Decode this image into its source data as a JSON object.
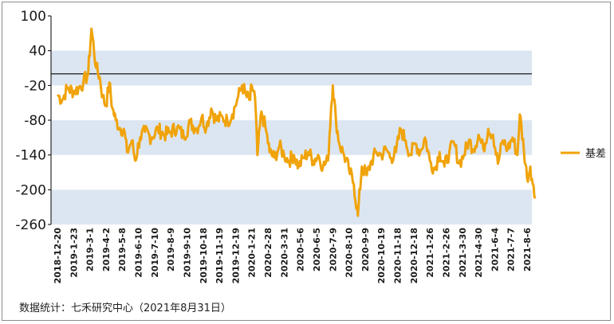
{
  "chart_data": {
    "type": "line",
    "title": "",
    "xlabel": "",
    "ylabel": "",
    "ylim": [
      -260,
      100
    ],
    "yticks": [
      100,
      40,
      -20,
      -80,
      -140,
      -200,
      -260
    ],
    "zero_line": true,
    "legend_position": "right",
    "colors": {
      "series": "#f0a30a",
      "band": "#dce6f2",
      "zero_line": "#1a1a1a"
    },
    "x_tick_labels": [
      "2018-12-20",
      "2019-1-23",
      "2019-3-1",
      "2019-4-2",
      "2019-5-8",
      "2019-6-10",
      "2019-7-10",
      "2019-8-9",
      "2019-9-10",
      "2019-10-18",
      "2019-11-19",
      "2019-12-19",
      "2020-1-21",
      "2020-2-28",
      "2020-3-31",
      "2020-5-6",
      "2020-6-5",
      "2020-7-9",
      "2020-8-10",
      "2020-9-9",
      "2020-10-19",
      "2020-11-18",
      "2020-12-18",
      "2021-1-26",
      "2021-2-26",
      "2021-3-30",
      "2021-4-30",
      "2021-6-4",
      "2021-7-7",
      "2021-8-6"
    ],
    "series": [
      {
        "name": "基差",
        "x_index_range": [
          0,
          29.5
        ],
        "anchor_values": [
          [
            0,
            -36
          ],
          [
            0.3,
            -45
          ],
          [
            0.6,
            -25
          ],
          [
            1.0,
            -30
          ],
          [
            1.3,
            -25
          ],
          [
            1.6,
            -15
          ],
          [
            1.9,
            0
          ],
          [
            2.1,
            78
          ],
          [
            2.4,
            10
          ],
          [
            2.6,
            -5
          ],
          [
            2.8,
            -40
          ],
          [
            3.0,
            -55
          ],
          [
            3.2,
            -15
          ],
          [
            3.4,
            -60
          ],
          [
            3.6,
            -80
          ],
          [
            3.9,
            -95
          ],
          [
            4.1,
            -95
          ],
          [
            4.3,
            -135
          ],
          [
            4.6,
            -115
          ],
          [
            4.8,
            -150
          ],
          [
            5.1,
            -110
          ],
          [
            5.4,
            -100
          ],
          [
            5.8,
            -110
          ],
          [
            6.2,
            -95
          ],
          [
            6.6,
            -105
          ],
          [
            7.0,
            -100
          ],
          [
            7.4,
            -92
          ],
          [
            7.8,
            -108
          ],
          [
            8.2,
            -85
          ],
          [
            8.6,
            -95
          ],
          [
            8.9,
            -75
          ],
          [
            9.2,
            -92
          ],
          [
            9.5,
            -60
          ],
          [
            9.8,
            -80
          ],
          [
            10.2,
            -75
          ],
          [
            10.5,
            -82
          ],
          [
            10.8,
            -70
          ],
          [
            11.1,
            -45
          ],
          [
            11.4,
            -20
          ],
          [
            11.7,
            -40
          ],
          [
            11.9,
            -45
          ],
          [
            12.0,
            -20
          ],
          [
            12.2,
            -40
          ],
          [
            12.35,
            -140
          ],
          [
            12.6,
            -65
          ],
          [
            12.9,
            -100
          ],
          [
            13.1,
            -135
          ],
          [
            13.4,
            -145
          ],
          [
            13.7,
            -125
          ],
          [
            14.0,
            -140
          ],
          [
            14.3,
            -150
          ],
          [
            14.6,
            -140
          ],
          [
            14.9,
            -160
          ],
          [
            15.2,
            -145
          ],
          [
            15.5,
            -135
          ],
          [
            15.8,
            -150
          ],
          [
            16.1,
            -140
          ],
          [
            16.4,
            -160
          ],
          [
            16.7,
            -150
          ],
          [
            16.9,
            -60
          ],
          [
            17.0,
            -20
          ],
          [
            17.2,
            -80
          ],
          [
            17.4,
            -120
          ],
          [
            17.7,
            -140
          ],
          [
            18.0,
            -165
          ],
          [
            18.3,
            -190
          ],
          [
            18.55,
            -245
          ],
          [
            18.8,
            -160
          ],
          [
            19.1,
            -175
          ],
          [
            19.4,
            -150
          ],
          [
            19.7,
            -135
          ],
          [
            20.0,
            -140
          ],
          [
            20.3,
            -130
          ],
          [
            20.6,
            -145
          ],
          [
            20.9,
            -135
          ],
          [
            21.2,
            -95
          ],
          [
            21.5,
            -115
          ],
          [
            21.8,
            -140
          ],
          [
            22.1,
            -120
          ],
          [
            22.4,
            -135
          ],
          [
            22.7,
            -110
          ],
          [
            23.0,
            -150
          ],
          [
            23.3,
            -165
          ],
          [
            23.6,
            -135
          ],
          [
            23.9,
            -160
          ],
          [
            24.2,
            -135
          ],
          [
            24.5,
            -120
          ],
          [
            24.8,
            -155
          ],
          [
            25.1,
            -140
          ],
          [
            25.4,
            -115
          ],
          [
            25.7,
            -130
          ],
          [
            26.0,
            -105
          ],
          [
            26.3,
            -130
          ],
          [
            26.6,
            -95
          ],
          [
            26.9,
            -105
          ],
          [
            27.2,
            -155
          ],
          [
            27.5,
            -115
          ],
          [
            27.8,
            -130
          ],
          [
            28.1,
            -110
          ],
          [
            28.4,
            -140
          ],
          [
            28.55,
            -70
          ],
          [
            28.8,
            -130
          ],
          [
            29.0,
            -180
          ],
          [
            29.2,
            -160
          ],
          [
            29.35,
            -190
          ],
          [
            29.5,
            -215
          ]
        ]
      }
    ]
  },
  "legend": {
    "label": "基差"
  },
  "footer": {
    "source": "数据统计：七禾研究中心（2021年8月31日）"
  }
}
